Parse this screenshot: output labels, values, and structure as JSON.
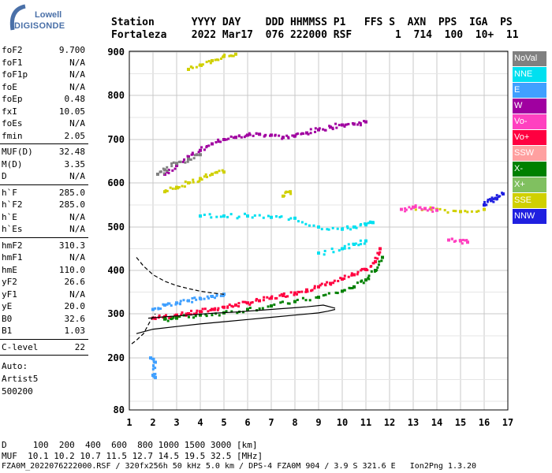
{
  "logo": {
    "line1": "Lowell",
    "line2": "DIGISONDE"
  },
  "header": {
    "line1": "Station      YYYY DAY    DDD HHMMSS P1   FFS S  AXN  PPS  IGA  PS",
    "line2": "Fortaleza    2022 Mar17  076 222000 RSF       1  714  100  10+  11"
  },
  "params": {
    "group1": [
      {
        "k": "foF2",
        "v": "9.700"
      },
      {
        "k": "foF1",
        "v": "N/A"
      },
      {
        "k": "foF1p",
        "v": "N/A"
      },
      {
        "k": "foE",
        "v": "N/A"
      },
      {
        "k": "foEp",
        "v": "0.48"
      },
      {
        "k": "fxI",
        "v": "10.05"
      },
      {
        "k": "foEs",
        "v": "N/A"
      },
      {
        "k": "fmin",
        "v": "2.05"
      }
    ],
    "group2": [
      {
        "k": "MUF(D)",
        "v": "32.48"
      },
      {
        "k": "M(D)",
        "v": "3.35"
      },
      {
        "k": "D",
        "v": "N/A"
      }
    ],
    "group3": [
      {
        "k": "h`F",
        "v": "285.0"
      },
      {
        "k": "h`F2",
        "v": "285.0"
      },
      {
        "k": "h`E",
        "v": "N/A"
      },
      {
        "k": "h`Es",
        "v": "N/A"
      }
    ],
    "group4": [
      {
        "k": "hmF2",
        "v": "310.3"
      },
      {
        "k": "hmF1",
        "v": "N/A"
      },
      {
        "k": "hmE",
        "v": "110.0"
      },
      {
        "k": "yF2",
        "v": "26.6"
      },
      {
        "k": "yF1",
        "v": "N/A"
      },
      {
        "k": "yE",
        "v": "20.0"
      },
      {
        "k": "B0",
        "v": "32.6"
      },
      {
        "k": "B1",
        "v": "1.03"
      }
    ],
    "group5": [
      {
        "k": "C-level",
        "v": "22"
      }
    ],
    "auto": [
      "Auto:",
      "Artist5",
      "500200"
    ]
  },
  "legend": [
    {
      "label": "NoVal",
      "color": "#808080"
    },
    {
      "label": "NNE",
      "color": "#00e0f0"
    },
    {
      "label": "E",
      "color": "#40a0ff"
    },
    {
      "label": "W",
      "color": "#a000a0"
    },
    {
      "label": "Vo-",
      "color": "#ff40c0"
    },
    {
      "label": "Vo+",
      "color": "#ff0040"
    },
    {
      "label": "SSW",
      "color": "#ffa0a0"
    },
    {
      "label": "X-",
      "color": "#008000"
    },
    {
      "label": "X+",
      "color": "#80c060"
    },
    {
      "label": "SSE",
      "color": "#d0d000"
    },
    {
      "label": "NNW",
      "color": "#2020e0"
    }
  ],
  "footer": {
    "line1": "D     100  200  400  600  800 1000 1500 3000 [km]",
    "line2": "MUF  10.1 10.2 10.7 11.5 12.7 14.5 19.5 32.5 [MHz]",
    "line3": "FZA0M_2022076222000.RSF / 320fx256h 50 kHz 5.0 km / DPS-4 FZA0M 904 / 3.9 S 321.6 E   Ion2Png 1.3.20"
  },
  "chart_data": {
    "type": "scatter",
    "title": "",
    "xlabel": "",
    "ylabel": "",
    "xlim": [
      1,
      17
    ],
    "ylim": [
      80,
      900
    ],
    "x_ticks": [
      1,
      2,
      3,
      4,
      5,
      6,
      7,
      8,
      9,
      10,
      11,
      12,
      13,
      14,
      15,
      16,
      17
    ],
    "y_ticks": [
      80,
      200,
      300,
      400,
      500,
      600,
      700,
      800,
      900
    ],
    "grid": true,
    "legend_position": "right",
    "series": [
      {
        "name": "Vo+",
        "color": "#ff0040",
        "kind": "ionogram-trace",
        "points": [
          [
            2.0,
            290
          ],
          [
            2.5,
            293
          ],
          [
            3.0,
            297
          ],
          [
            3.5,
            300
          ],
          [
            4.0,
            305
          ],
          [
            4.5,
            310
          ],
          [
            5.0,
            315
          ],
          [
            5.5,
            320
          ],
          [
            6.0,
            325
          ],
          [
            6.5,
            330
          ],
          [
            7.0,
            336
          ],
          [
            7.5,
            342
          ],
          [
            8.0,
            348
          ],
          [
            8.5,
            355
          ],
          [
            9.0,
            362
          ],
          [
            9.5,
            370
          ],
          [
            10.0,
            380
          ],
          [
            10.5,
            390
          ],
          [
            11.0,
            402
          ],
          [
            11.4,
            420
          ],
          [
            11.6,
            450
          ]
        ]
      },
      {
        "name": "X-",
        "color": "#008000",
        "kind": "ionogram-trace",
        "points": [
          [
            2.5,
            288
          ],
          [
            3.0,
            290
          ],
          [
            4.0,
            297
          ],
          [
            5.0,
            302
          ],
          [
            6.0,
            310
          ],
          [
            7.0,
            318
          ],
          [
            8.0,
            328
          ],
          [
            9.0,
            338
          ],
          [
            10.0,
            352
          ],
          [
            10.5,
            362
          ],
          [
            11.0,
            378
          ],
          [
            11.4,
            400
          ],
          [
            11.7,
            430
          ]
        ]
      },
      {
        "name": "W",
        "color": "#a000a0",
        "kind": "ionogram-trace",
        "points": [
          [
            2.5,
            620
          ],
          [
            3.0,
            640
          ],
          [
            3.5,
            660
          ],
          [
            4.0,
            675
          ],
          [
            4.5,
            690
          ],
          [
            5.0,
            700
          ],
          [
            5.5,
            705
          ],
          [
            6.0,
            710
          ],
          [
            6.5,
            712
          ],
          [
            7.0,
            710
          ],
          [
            7.5,
            705
          ],
          [
            8.0,
            708
          ],
          [
            8.5,
            715
          ],
          [
            9.0,
            722
          ],
          [
            9.5,
            728
          ],
          [
            10.0,
            733
          ],
          [
            10.5,
            735
          ],
          [
            11.0,
            740
          ]
        ]
      },
      {
        "name": "NNE",
        "color": "#00e0f0",
        "kind": "ionogram-trace",
        "points": [
          [
            4.0,
            525
          ],
          [
            5.0,
            525
          ],
          [
            6.0,
            525
          ],
          [
            7.0,
            522
          ],
          [
            8.0,
            520
          ],
          [
            9.0,
            500
          ],
          [
            10.0,
            495
          ],
          [
            10.5,
            500
          ],
          [
            11.0,
            505
          ],
          [
            11.3,
            510
          ],
          [
            9.0,
            440
          ],
          [
            10.0,
            450
          ],
          [
            10.5,
            460
          ],
          [
            11.0,
            468
          ]
        ]
      },
      {
        "name": "SSE",
        "color": "#d0d000",
        "kind": "ionogram-trace",
        "points": [
          [
            2.5,
            580
          ],
          [
            3.0,
            590
          ],
          [
            3.5,
            600
          ],
          [
            4.0,
            610
          ],
          [
            4.5,
            620
          ],
          [
            5.0,
            625
          ],
          [
            3.5,
            860
          ],
          [
            4.0,
            870
          ],
          [
            4.5,
            880
          ],
          [
            5.0,
            890
          ],
          [
            5.5,
            895
          ],
          [
            7.5,
            570
          ],
          [
            7.8,
            580
          ],
          [
            13.0,
            545
          ],
          [
            14.0,
            540
          ],
          [
            15.0,
            535
          ],
          [
            16.0,
            540
          ]
        ]
      },
      {
        "name": "NNW",
        "color": "#2020e0",
        "kind": "ionogram-trace",
        "points": [
          [
            16.0,
            550
          ],
          [
            16.3,
            560
          ],
          [
            16.5,
            565
          ],
          [
            16.8,
            575
          ]
        ]
      },
      {
        "name": "Vo-",
        "color": "#ff40c0",
        "kind": "ionogram-trace",
        "points": [
          [
            12.5,
            540
          ],
          [
            13.0,
            545
          ],
          [
            13.5,
            542
          ],
          [
            14.0,
            538
          ],
          [
            14.5,
            470
          ],
          [
            15.0,
            468
          ],
          [
            15.3,
            465
          ]
        ]
      },
      {
        "name": "NoVal",
        "color": "#808080",
        "kind": "ionogram-trace",
        "points": [
          [
            2.2,
            620
          ],
          [
            2.5,
            630
          ],
          [
            3.0,
            645
          ],
          [
            3.5,
            655
          ],
          [
            4.0,
            665
          ]
        ]
      },
      {
        "name": "E",
        "color": "#40a0ff",
        "kind": "ionogram-trace",
        "points": [
          [
            1.9,
            200
          ],
          [
            2.1,
            190
          ],
          [
            2.0,
            160
          ],
          [
            2.1,
            155
          ],
          [
            2.0,
            310
          ],
          [
            2.5,
            320
          ],
          [
            3.0,
            325
          ],
          [
            3.5,
            330
          ],
          [
            4.0,
            335
          ],
          [
            4.5,
            340
          ],
          [
            5.0,
            345
          ]
        ]
      }
    ],
    "profile_lines": [
      {
        "style": "solid",
        "color": "#000000",
        "points": [
          [
            1.3,
            255
          ],
          [
            2.0,
            265
          ],
          [
            3.0,
            271
          ],
          [
            4.0,
            277
          ],
          [
            5.0,
            282
          ],
          [
            6.0,
            287
          ],
          [
            7.0,
            292
          ],
          [
            8.0,
            297
          ],
          [
            9.0,
            302
          ],
          [
            9.4,
            306
          ],
          [
            9.7,
            310
          ]
        ]
      },
      {
        "style": "solid",
        "color": "#000000",
        "points": [
          [
            1.8,
            290
          ],
          [
            2.5,
            293
          ],
          [
            3.5,
            297
          ],
          [
            4.5,
            301
          ],
          [
            5.5,
            304
          ],
          [
            6.5,
            308
          ],
          [
            7.5,
            312
          ],
          [
            8.5,
            316
          ],
          [
            9.2,
            320
          ],
          [
            9.7,
            313
          ]
        ]
      },
      {
        "style": "dashed",
        "color": "#000000",
        "points": [
          [
            1.1,
            232
          ],
          [
            1.3,
            240
          ],
          [
            1.6,
            255
          ],
          [
            1.9,
            285
          ],
          [
            2.1,
            300
          ]
        ]
      },
      {
        "style": "dashed",
        "color": "#000000",
        "points": [
          [
            1.3,
            430
          ],
          [
            1.6,
            410
          ],
          [
            2.0,
            390
          ],
          [
            2.5,
            375
          ],
          [
            3.0,
            365
          ],
          [
            3.5,
            358
          ],
          [
            4.0,
            352
          ],
          [
            4.5,
            348
          ],
          [
            5.0,
            345
          ]
        ]
      }
    ]
  }
}
